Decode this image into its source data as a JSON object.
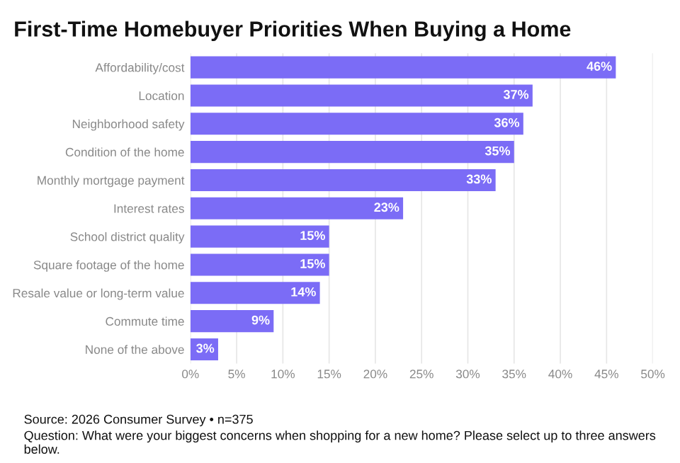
{
  "chart_data": {
    "type": "bar",
    "orientation": "horizontal",
    "title": "First-Time Homebuyer Priorities When Buying a Home",
    "categories": [
      "Affordability/cost",
      "Location",
      "Neighborhood safety",
      "Condition of the home",
      "Monthly mortgage payment",
      "Interest rates",
      "School district quality",
      "Square footage of the home",
      "Resale value or long-term value",
      "Commute time",
      "None of the above"
    ],
    "values": [
      46,
      37,
      36,
      35,
      33,
      23,
      15,
      15,
      14,
      9,
      3
    ],
    "value_labels": [
      "46%",
      "37%",
      "36%",
      "35%",
      "33%",
      "23%",
      "15%",
      "15%",
      "14%",
      "9%",
      "3%"
    ],
    "color": "#7b6cf6",
    "xlim": [
      0,
      50
    ],
    "xticks": [
      {
        "value": 0,
        "label": "0%"
      },
      {
        "value": 5,
        "label": "5%"
      },
      {
        "value": 10,
        "label": "10%"
      },
      {
        "value": 15,
        "label": "15%"
      },
      {
        "value": 20,
        "label": "20%"
      },
      {
        "value": 25,
        "label": "25%"
      },
      {
        "value": 30,
        "label": "30%"
      },
      {
        "value": 35,
        "label": "35%"
      },
      {
        "value": 40,
        "label": "40%"
      },
      {
        "value": 45,
        "label": "45%"
      },
      {
        "value": 50,
        "label": "50%"
      }
    ],
    "grid": "x",
    "annotations": [
      "Source: 2026 Consumer Survey • n=375",
      "Question: What were your biggest concerns when shopping for a new home? Please select up to three answers below."
    ]
  }
}
